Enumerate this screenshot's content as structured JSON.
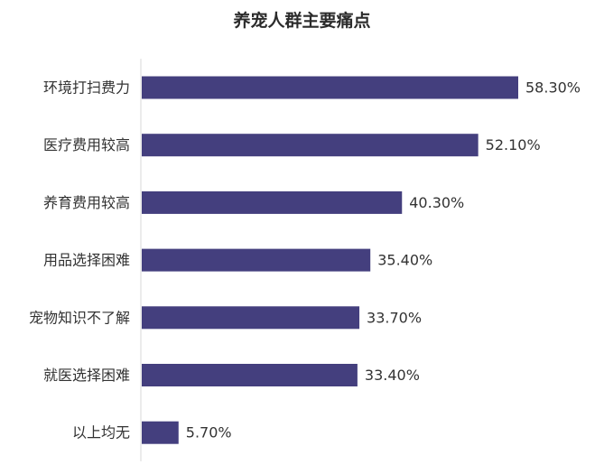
{
  "chart_data": {
    "type": "bar",
    "orientation": "horizontal",
    "title": "养宠人群主要痛点",
    "categories": [
      "环境打扫费力",
      "医疗费用较高",
      "养育费用较高",
      "用品选择困难",
      "宠物知识不了解",
      "就医选择困难",
      "以上均无"
    ],
    "values": [
      58.3,
      52.1,
      40.3,
      35.4,
      33.7,
      33.4,
      5.7
    ],
    "data_labels": [
      "58.30%",
      "52.10%",
      "40.30%",
      "35.40%",
      "33.70%",
      "33.40%",
      "5.70%"
    ],
    "xlim": [
      0,
      60
    ],
    "unit": "%",
    "grid": false,
    "legend": "none",
    "bar_color": "#443f7e",
    "axis_color": "#d9d9d9",
    "label_color": "#333333"
  }
}
